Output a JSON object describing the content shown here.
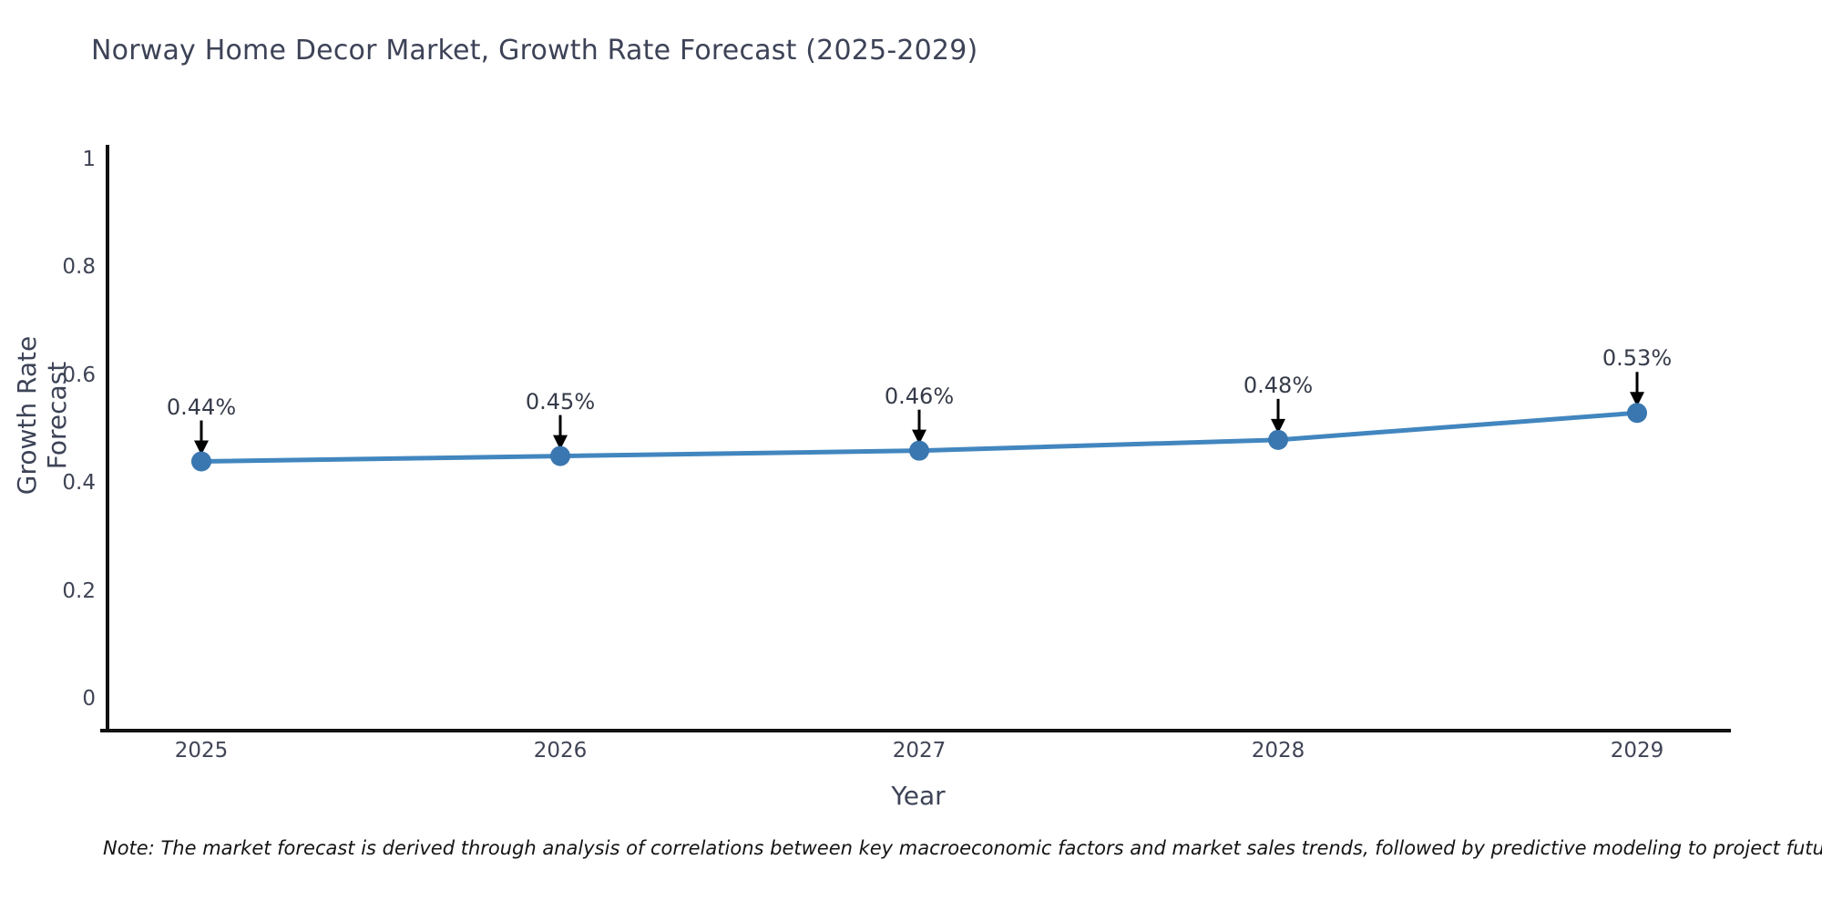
{
  "header": {
    "title": "Norway Home Decor Market, Growth Rate Forecast (2025-2029)"
  },
  "note": "Note: The market forecast is derived through analysis of correlations between key macroeconomic factors and market sales trends, followed by predictive modeling to project future sales",
  "chart_data": {
    "type": "line",
    "title": "Norway Home Decor Market, Growth Rate Forecast (2025-2029)",
    "categories": [
      "2025",
      "2026",
      "2027",
      "2028",
      "2029"
    ],
    "values": [
      0.44,
      0.45,
      0.46,
      0.48,
      0.53
    ],
    "point_labels": [
      "0.44%",
      "0.45%",
      "0.46%",
      "0.48%",
      "0.53%"
    ],
    "xlabel": "Year",
    "ylabel": "Growth Rate Forecast",
    "ylim": [
      0,
      1
    ],
    "yticks": [
      0,
      0.2,
      0.4,
      0.6,
      0.8,
      1
    ],
    "ytick_labels": [
      "0",
      "0.2",
      "0.4",
      "0.6",
      "0.8",
      "1"
    ],
    "grid": false,
    "legend": "none",
    "colors": {
      "line": "#4286bf",
      "marker": "#3a77b0",
      "axis": "#111111",
      "annotation_arrow": "#000000"
    }
  }
}
